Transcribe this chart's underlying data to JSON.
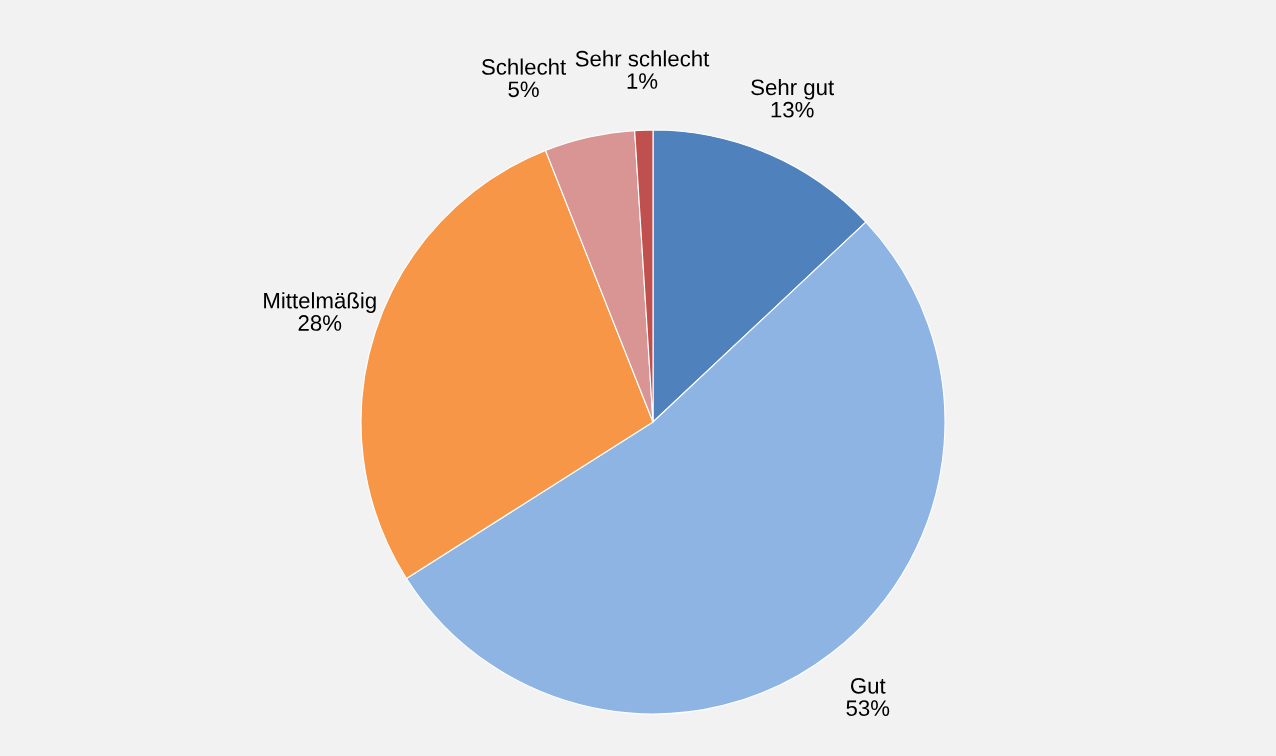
{
  "chart_data": {
    "type": "pie",
    "categories": [
      "Sehr gut",
      "Gut",
      "Mittelmäßig",
      "Schlecht",
      "Sehr schlecht"
    ],
    "values": [
      13,
      53,
      28,
      5,
      1
    ],
    "value_labels": [
      "13%",
      "53%",
      "28%",
      "5%",
      "1%"
    ],
    "colors": [
      "#4f81bd",
      "#8eb4e3",
      "#f79646",
      "#d99594",
      "#c0504d"
    ]
  }
}
